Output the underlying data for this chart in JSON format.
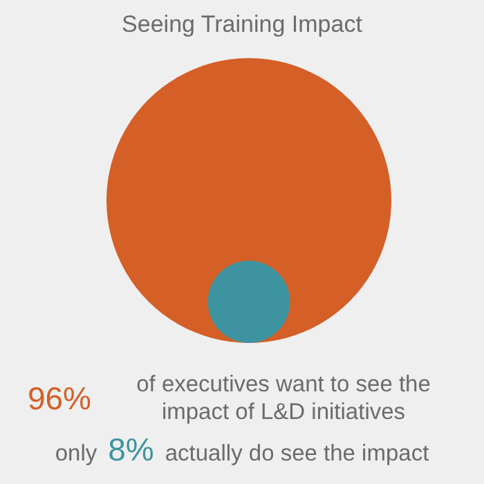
{
  "chart_data": {
    "type": "other",
    "title": "Seeing Training Impact",
    "categories": [
      "of executives want to see the impact of L&D initiatives",
      "actually do see the impact"
    ],
    "values": [
      96,
      8
    ],
    "value_labels": [
      "96%",
      "8%"
    ],
    "colors": [
      "#d45f27",
      "#3d93a0"
    ],
    "annotations": [
      "only"
    ]
  }
}
